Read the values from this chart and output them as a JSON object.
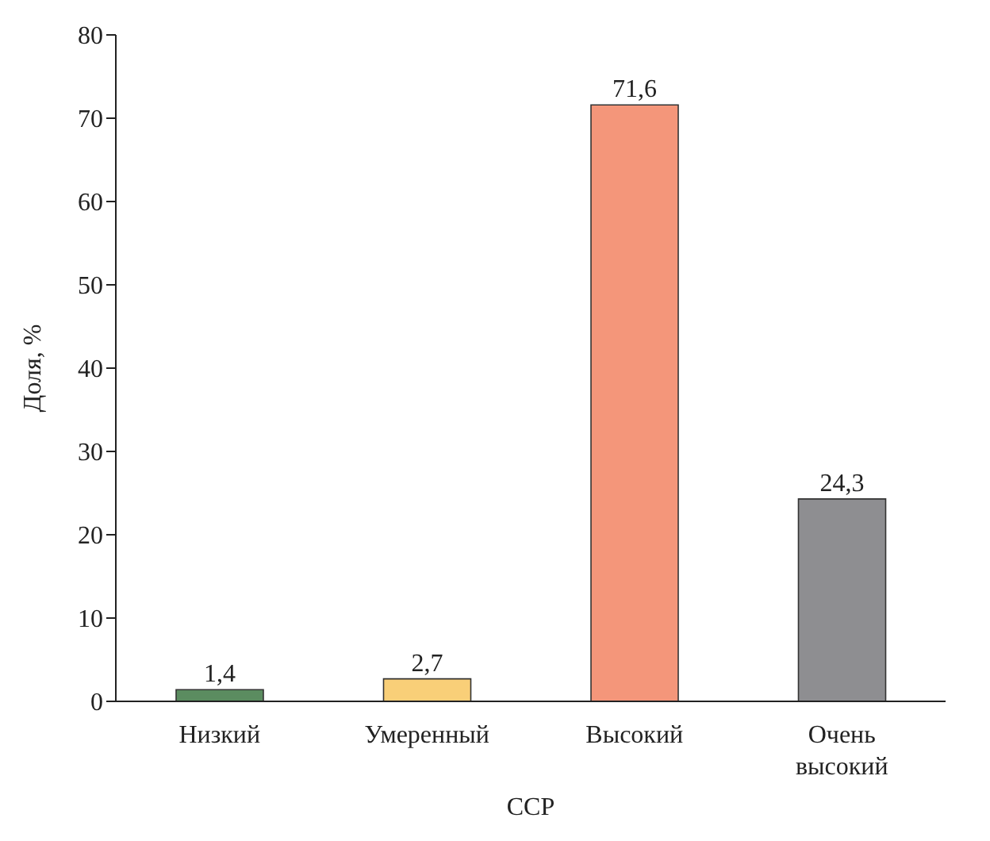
{
  "chart_data": {
    "type": "bar",
    "xlabel": "ССР",
    "ylabel": "Доля, %",
    "categories": [
      "Низкий",
      "Умеренный",
      "Высокий",
      "Очень высокий"
    ],
    "values": [
      1.4,
      2.7,
      71.6,
      24.3
    ],
    "colors": [
      "#5b8c60",
      "#f9cf78",
      "#f4967a",
      "#8e8e91"
    ],
    "value_labels": [
      "1,4",
      "2,7",
      "71,6",
      "24,3"
    ],
    "ylim": [
      0,
      80
    ],
    "yticks": [
      0,
      10,
      20,
      30,
      40,
      50,
      60,
      70,
      80
    ],
    "grid": false,
    "legend": false
  }
}
